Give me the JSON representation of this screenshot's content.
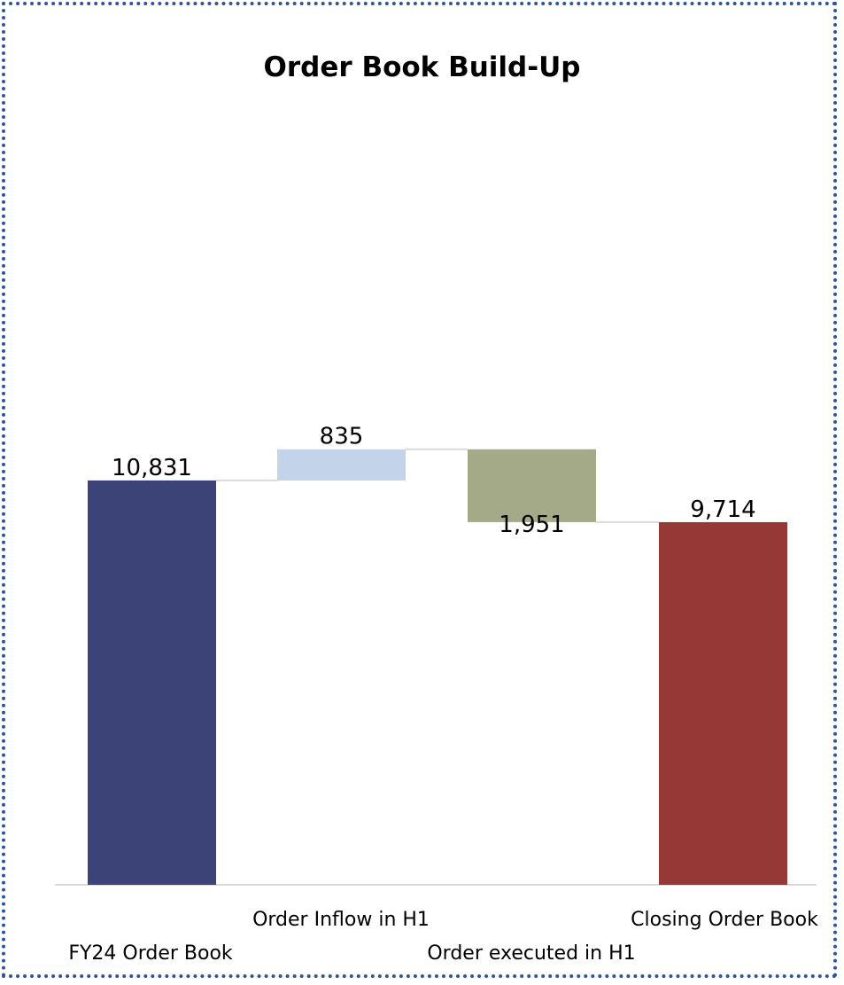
{
  "chart_data": {
    "type": "bar",
    "subtype": "waterfall",
    "title": "Order Book Build-Up",
    "categories": [
      "FY24 Order Book",
      "Order Inflow in H1",
      "Order executed in H1",
      "Closing Order Book"
    ],
    "values": [
      10831,
      835,
      -1951,
      9714
    ],
    "value_labels": [
      "10,831",
      "835",
      "1,951",
      "9,714"
    ],
    "kinds": [
      "total",
      "increase",
      "decrease",
      "total"
    ],
    "colors": [
      "#3c4477",
      "#c2d3ea",
      "#a4aa88",
      "#953836"
    ],
    "ylim": [
      0,
      23700
    ],
    "grid": false,
    "legend": "none"
  }
}
